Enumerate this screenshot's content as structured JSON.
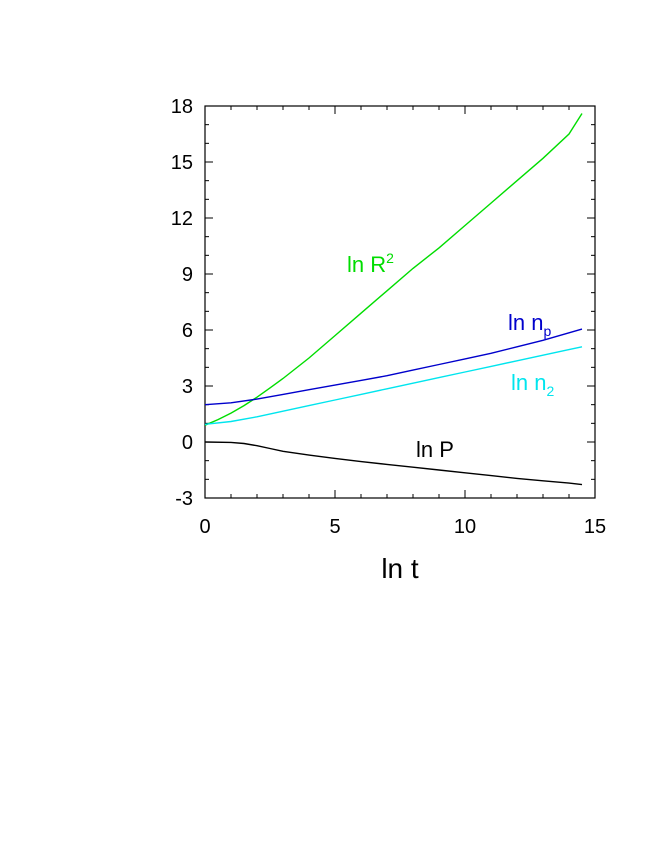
{
  "chart_data": {
    "type": "line",
    "xlabel": "ln t",
    "ylabel": "",
    "xlim": [
      0,
      15
    ],
    "ylim": [
      -3,
      18
    ],
    "xticks": [
      0,
      5,
      10,
      15
    ],
    "yticks": [
      -3,
      0,
      3,
      6,
      9,
      12,
      15,
      18
    ],
    "grid": false,
    "series": [
      {
        "name": "ln R",
        "name_sup": "2",
        "color": "#00dd00",
        "x": [
          0,
          0.5,
          1,
          1.5,
          2,
          2.5,
          3,
          4,
          5,
          6,
          7,
          8,
          9,
          10,
          11,
          12,
          13,
          14,
          14.5
        ],
        "y": [
          0.9,
          1.2,
          1.55,
          1.95,
          2.4,
          2.9,
          3.4,
          4.5,
          5.7,
          6.9,
          8.1,
          9.3,
          10.4,
          11.6,
          12.8,
          14.0,
          15.2,
          16.5,
          17.6
        ]
      },
      {
        "name": "ln n",
        "name_sub": "p",
        "color": "#0000cc",
        "x": [
          0,
          1,
          2,
          3,
          4,
          5,
          6,
          7,
          8,
          9,
          10,
          11,
          12,
          13,
          14,
          14.5
        ],
        "y": [
          2.0,
          2.1,
          2.3,
          2.55,
          2.8,
          3.05,
          3.3,
          3.55,
          3.85,
          4.15,
          4.45,
          4.75,
          5.1,
          5.45,
          5.85,
          6.05
        ]
      },
      {
        "name": "ln n",
        "name_sub": "2",
        "color": "#00e5ee",
        "x": [
          0,
          1,
          2,
          3,
          4,
          5,
          6,
          7,
          8,
          9,
          10,
          11,
          12,
          13,
          14,
          14.5
        ],
        "y": [
          0.95,
          1.1,
          1.35,
          1.65,
          1.95,
          2.25,
          2.55,
          2.85,
          3.15,
          3.45,
          3.75,
          4.05,
          4.35,
          4.65,
          4.95,
          5.1
        ]
      },
      {
        "name": "ln P",
        "color": "#000000",
        "x": [
          0,
          1,
          1.5,
          2,
          2.5,
          3,
          4,
          5,
          6,
          7,
          8,
          9,
          10,
          11,
          12,
          13,
          14,
          14.5
        ],
        "y": [
          0.0,
          -0.02,
          -0.08,
          -0.2,
          -0.35,
          -0.5,
          -0.7,
          -0.88,
          -1.05,
          -1.2,
          -1.35,
          -1.5,
          -1.65,
          -1.8,
          -1.95,
          -2.08,
          -2.2,
          -2.28
        ]
      }
    ]
  }
}
